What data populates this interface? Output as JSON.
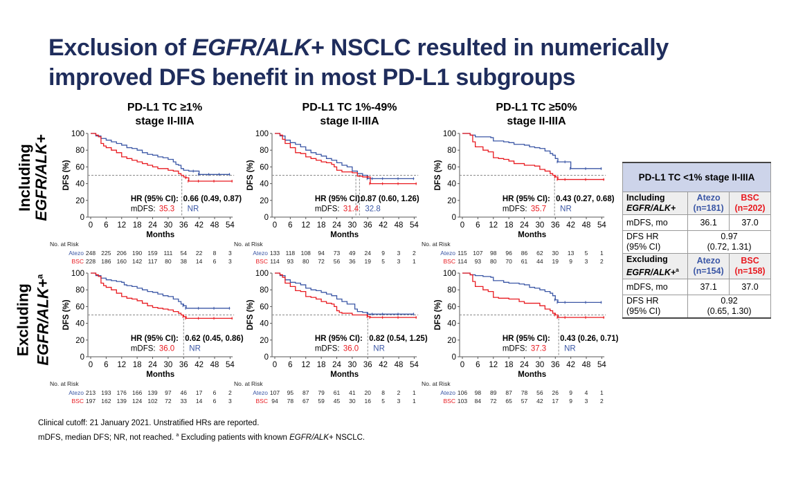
{
  "slide": {
    "title_parts": [
      "Exclusion of ",
      "EGFR/ALK",
      "+ NSCLC resulted in numerically",
      "improved DFS benefit in most PD-L1 subgroups"
    ],
    "row_labels": [
      {
        "line1": "Including",
        "line2": "EGFR/ALK+"
      },
      {
        "line1": "Excluding",
        "line2": "EGFR/ALK+",
        "sup": "a"
      }
    ],
    "footer_line1": "Clinical cutoff: 21 January 2021. Unstratified HRs are reported.",
    "footer_line2_a": "mDFS, median DFS; NR, not reached. ",
    "footer_line2_sup": "a",
    "footer_line2_b": " Excluding patients with known ",
    "footer_line2_c": "EGFR/ALK",
    "footer_line2_d": "+ NSCLC.",
    "colors": {
      "atezo": "#3a56a5",
      "bsc": "#e8191f",
      "title": "#1f2d5c"
    }
  },
  "side_table": {
    "title": "PD-L1 TC <1% stage II-IIIA",
    "groups": [
      {
        "label1": "Including",
        "label2": "EGFR/ALK+",
        "sup": "",
        "atezo": "Atezo",
        "atezo_n": "(n=181)",
        "bsc": "BSC",
        "bsc_n": "(n=202)",
        "mdfs_label": "mDFS, mo",
        "mdfs_atezo": "36.1",
        "mdfs_bsc": "37.0",
        "hr_label1": "DFS HR",
        "hr_label2": "(95% CI)",
        "hr": "0.97",
        "ci": "(0.72, 1.31)"
      },
      {
        "label1": "Excluding",
        "label2": "EGFR/ALK+",
        "sup": "a",
        "atezo": "Atezo",
        "atezo_n": "(n=154)",
        "bsc": "BSC",
        "bsc_n": "(n=158)",
        "mdfs_label": "mDFS, mo",
        "mdfs_atezo": "37.1",
        "mdfs_bsc": "37.0",
        "hr_label1": "DFS HR",
        "hr_label2": "(95% CI)",
        "hr": "0.92",
        "ci": "(0.65, 1.30)"
      }
    ]
  },
  "chart_data": [
    {
      "type": "line",
      "panel": "including-tc1",
      "title": [
        "PD-L1 TC ≥1%",
        "stage II-IIIA"
      ],
      "xlabel": "Months",
      "ylabel": "DFS (%)",
      "xticks": [
        0,
        6,
        12,
        18,
        24,
        30,
        36,
        42,
        48,
        54
      ],
      "yticks": [
        0,
        20,
        40,
        60,
        80,
        100
      ],
      "xlim": [
        0,
        55
      ],
      "ylim": [
        0,
        100
      ],
      "hr_label": "HR (95% CI):",
      "hr": "0.66 (0.49, 0.87)",
      "mdfs_label": "mDFS:",
      "mdfs_bsc": "35.3",
      "mdfs_atezo": "NR",
      "median_lines": [
        35.3
      ],
      "risk_label": "No. at Risk",
      "risk_atezo": [
        "248",
        "225",
        "206",
        "190",
        "159",
        "111",
        "54",
        "22",
        "8",
        "3"
      ],
      "risk_bsc": [
        "228",
        "186",
        "160",
        "142",
        "117",
        "80",
        "38",
        "14",
        "6",
        "3"
      ],
      "series": [
        {
          "name": "Atezo",
          "x": [
            0,
            2,
            4,
            6,
            8,
            10,
            12,
            14,
            16,
            18,
            20,
            22,
            24,
            26,
            28,
            30,
            32,
            33,
            34,
            35,
            36,
            38,
            40,
            42,
            46,
            50,
            54
          ],
          "y": [
            100,
            97,
            94,
            92,
            90,
            88,
            86,
            83,
            82,
            80,
            77,
            75,
            74,
            72,
            71,
            69,
            66,
            63,
            62,
            58,
            56,
            55,
            55,
            51,
            51,
            51,
            51
          ]
        },
        {
          "name": "BSC",
          "x": [
            0,
            2,
            3,
            4,
            5,
            6,
            8,
            10,
            12,
            14,
            16,
            18,
            20,
            22,
            24,
            26,
            28,
            30,
            32,
            34,
            35,
            36,
            37,
            38,
            42,
            48,
            55
          ],
          "y": [
            100,
            98,
            96,
            88,
            85,
            83,
            80,
            77,
            72,
            70,
            68,
            66,
            64,
            62,
            60,
            58,
            58,
            56,
            55,
            52,
            50,
            48,
            47,
            43,
            43,
            43,
            43
          ]
        }
      ]
    },
    {
      "type": "line",
      "panel": "including-tc1-49",
      "title": [
        "PD-L1 TC 1%-49%",
        "stage II-IIIA"
      ],
      "xlabel": "Months",
      "ylabel": "DFS (%)",
      "xticks": [
        0,
        6,
        12,
        18,
        24,
        30,
        36,
        42,
        48,
        54
      ],
      "yticks": [
        0,
        20,
        40,
        60,
        80,
        100
      ],
      "xlim": [
        0,
        55
      ],
      "ylim": [
        0,
        100
      ],
      "hr_label": "HR (95% CI):",
      "hr": "0.87 (0.60, 1.26)",
      "mdfs_label": "mDFS:",
      "mdfs_bsc": "31.4",
      "mdfs_atezo": "32.8",
      "median_lines": [
        31.4,
        32.8
      ],
      "risk_label": "No. at Risk",
      "risk_atezo": [
        "133",
        "118",
        "108",
        "94",
        "73",
        "49",
        "24",
        "9",
        "3",
        "2"
      ],
      "risk_bsc": [
        "114",
        "93",
        "80",
        "72",
        "56",
        "36",
        "19",
        "5",
        "3",
        "1"
      ],
      "series": [
        {
          "name": "Atezo",
          "x": [
            0,
            2,
            4,
            6,
            8,
            10,
            12,
            14,
            16,
            18,
            20,
            22,
            24,
            26,
            28,
            30,
            32,
            34,
            36,
            38,
            42,
            48,
            54
          ],
          "y": [
            100,
            97,
            92,
            89,
            87,
            84,
            80,
            77,
            75,
            73,
            70,
            68,
            65,
            62,
            60,
            55,
            52,
            50,
            46,
            46,
            46,
            46,
            46
          ]
        },
        {
          "name": "BSC",
          "x": [
            0,
            2,
            3,
            4,
            6,
            8,
            10,
            12,
            14,
            16,
            18,
            20,
            22,
            23,
            24,
            26,
            28,
            30,
            32,
            34,
            36,
            37,
            42,
            48,
            55
          ],
          "y": [
            100,
            98,
            93,
            88,
            83,
            77,
            76,
            72,
            70,
            68,
            66,
            65,
            63,
            60,
            56,
            54,
            54,
            53,
            49,
            48,
            48,
            40,
            40,
            40,
            40
          ]
        }
      ]
    },
    {
      "type": "line",
      "panel": "including-tc50",
      "title": [
        "PD-L1 TC ≥50%",
        "stage II-IIIA"
      ],
      "xlabel": "Months",
      "ylabel": "DFS (%)",
      "xticks": [
        0,
        6,
        12,
        18,
        24,
        30,
        36,
        42,
        48,
        54
      ],
      "yticks": [
        0,
        20,
        40,
        60,
        80,
        100
      ],
      "xlim": [
        0,
        55
      ],
      "ylim": [
        0,
        100
      ],
      "hr_label": "HR (95% CI):",
      "hr": "0.43 (0.27, 0.68)",
      "mdfs_label": "mDFS:",
      "mdfs_bsc": "35.7",
      "mdfs_atezo": "NR",
      "median_lines": [
        35.7
      ],
      "risk_label": "No. at Risk",
      "risk_atezo": [
        "115",
        "107",
        "98",
        "96",
        "86",
        "62",
        "30",
        "13",
        "5",
        "1"
      ],
      "risk_bsc": [
        "114",
        "93",
        "80",
        "70",
        "61",
        "44",
        "19",
        "9",
        "3",
        "2"
      ],
      "series": [
        {
          "name": "Atezo",
          "x": [
            0,
            3,
            5,
            8,
            11,
            12,
            16,
            18,
            20,
            24,
            26,
            28,
            30,
            32,
            34,
            35,
            36,
            37,
            40,
            42,
            48,
            54
          ],
          "y": [
            100,
            98,
            96,
            96,
            95,
            91,
            90,
            89,
            87,
            86,
            84,
            83,
            82,
            79,
            76,
            74,
            70,
            66,
            66,
            58,
            58,
            58
          ]
        },
        {
          "name": "BSC",
          "x": [
            0,
            3,
            4,
            5,
            6,
            8,
            10,
            12,
            14,
            16,
            18,
            20,
            24,
            28,
            30,
            32,
            34,
            35,
            36,
            37,
            40,
            48,
            55
          ],
          "y": [
            100,
            98,
            90,
            84,
            84,
            80,
            78,
            71,
            70,
            69,
            67,
            64,
            62,
            61,
            57,
            55,
            52,
            50,
            48,
            45,
            45,
            45,
            45
          ]
        }
      ]
    },
    {
      "type": "line",
      "panel": "excluding-tc1",
      "title": [],
      "xlabel": "Months",
      "ylabel": "DFS (%)",
      "xticks": [
        0,
        6,
        12,
        18,
        24,
        30,
        36,
        42,
        48,
        54
      ],
      "yticks": [
        0,
        20,
        40,
        60,
        80,
        100
      ],
      "xlim": [
        0,
        55
      ],
      "ylim": [
        0,
        100
      ],
      "hr_label": "HR (95% CI):",
      "hr": "0.62 (0.45, 0.86)",
      "mdfs_label": "mDFS:",
      "mdfs_bsc": "36.0",
      "mdfs_atezo": "NR",
      "median_lines": [
        36.0
      ],
      "risk_label": "No. at Risk",
      "risk_atezo": [
        "213",
        "193",
        "176",
        "166",
        "139",
        "97",
        "46",
        "17",
        "6",
        "2"
      ],
      "risk_bsc": [
        "197",
        "162",
        "139",
        "124",
        "102",
        "72",
        "33",
        "14",
        "6",
        "3"
      ],
      "series": [
        {
          "name": "Atezo",
          "x": [
            0,
            2,
            4,
            6,
            8,
            10,
            12,
            13,
            14,
            16,
            18,
            20,
            22,
            24,
            26,
            28,
            30,
            32,
            34,
            35,
            36,
            37,
            42,
            48,
            54
          ],
          "y": [
            100,
            97,
            94,
            92,
            91,
            90,
            89,
            86,
            85,
            84,
            82,
            80,
            78,
            77,
            75,
            73,
            72,
            69,
            66,
            63,
            61,
            58,
            58,
            58,
            58
          ]
        },
        {
          "name": "BSC",
          "x": [
            0,
            2,
            3,
            4,
            5,
            6,
            8,
            10,
            12,
            14,
            16,
            18,
            20,
            22,
            24,
            26,
            28,
            30,
            32,
            34,
            35,
            36,
            37,
            42,
            48,
            55
          ],
          "y": [
            100,
            98,
            96,
            88,
            85,
            83,
            80,
            76,
            72,
            70,
            69,
            67,
            64,
            61,
            59,
            58,
            57,
            56,
            54,
            52,
            50,
            48,
            46,
            46,
            46,
            46
          ]
        }
      ]
    },
    {
      "type": "line",
      "panel": "excluding-tc1-49",
      "title": [],
      "xlabel": "Months",
      "ylabel": "DFS (%)",
      "xticks": [
        0,
        6,
        12,
        18,
        24,
        30,
        36,
        42,
        48,
        54
      ],
      "yticks": [
        0,
        20,
        40,
        60,
        80,
        100
      ],
      "xlim": [
        0,
        55
      ],
      "ylim": [
        0,
        100
      ],
      "hr_label": "HR (95% CI):",
      "hr": "0.82 (0.54, 1.25)",
      "mdfs_label": "mDFS:",
      "mdfs_bsc": "36.0",
      "mdfs_atezo": "NR",
      "median_lines": [
        36.0
      ],
      "risk_label": "No. at Risk",
      "risk_atezo": [
        "107",
        "95",
        "87",
        "79",
        "61",
        "41",
        "20",
        "8",
        "2",
        "1"
      ],
      "risk_bsc": [
        "94",
        "78",
        "67",
        "59",
        "45",
        "30",
        "16",
        "5",
        "3",
        "1"
      ],
      "series": [
        {
          "name": "Atezo",
          "x": [
            0,
            2,
            4,
            6,
            8,
            10,
            12,
            14,
            16,
            18,
            20,
            22,
            24,
            26,
            28,
            30,
            31,
            32,
            34,
            36,
            38,
            42,
            48,
            54
          ],
          "y": [
            100,
            97,
            92,
            89,
            88,
            86,
            82,
            80,
            79,
            77,
            75,
            73,
            69,
            66,
            63,
            63,
            57,
            54,
            53,
            51,
            51,
            51,
            51,
            51
          ]
        },
        {
          "name": "BSC",
          "x": [
            0,
            2,
            3,
            4,
            6,
            8,
            10,
            12,
            14,
            16,
            18,
            20,
            22,
            23,
            24,
            25,
            26,
            28,
            30,
            32,
            34,
            36,
            37,
            42,
            48,
            55
          ],
          "y": [
            100,
            98,
            95,
            88,
            84,
            79,
            78,
            72,
            71,
            69,
            66,
            64,
            63,
            60,
            55,
            53,
            52,
            52,
            50,
            50,
            50,
            48,
            47,
            47,
            47,
            47
          ]
        }
      ]
    },
    {
      "type": "line",
      "panel": "excluding-tc50",
      "title": [],
      "xlabel": "Months",
      "ylabel": "DFS (%)",
      "xticks": [
        0,
        6,
        12,
        18,
        24,
        30,
        36,
        42,
        48,
        54
      ],
      "yticks": [
        0,
        20,
        40,
        60,
        80,
        100
      ],
      "xlim": [
        0,
        55
      ],
      "ylim": [
        0,
        100
      ],
      "hr_label": "HR (95% CI):",
      "hr": "0.43 (0.26, 0.71)",
      "mdfs_label": "mDFS:",
      "mdfs_bsc": "37.3",
      "mdfs_atezo": "NR",
      "median_lines": [
        37.3
      ],
      "risk_label": "No. at Risk",
      "risk_atezo": [
        "106",
        "98",
        "89",
        "87",
        "78",
        "56",
        "26",
        "9",
        "4",
        "1"
      ],
      "risk_bsc": [
        "103",
        "84",
        "72",
        "65",
        "57",
        "42",
        "17",
        "9",
        "3",
        "2"
      ],
      "series": [
        {
          "name": "Atezo",
          "x": [
            0,
            3,
            5,
            8,
            11,
            12,
            16,
            18,
            22,
            24,
            26,
            28,
            30,
            32,
            34,
            35,
            36,
            37,
            40,
            48,
            54
          ],
          "y": [
            100,
            98,
            97,
            96,
            95,
            91,
            89,
            88,
            87,
            86,
            83,
            82,
            80,
            78,
            76,
            73,
            68,
            65,
            65,
            65,
            65
          ]
        },
        {
          "name": "BSC",
          "x": [
            0,
            3,
            4,
            5,
            6,
            8,
            10,
            12,
            14,
            18,
            22,
            24,
            28,
            30,
            32,
            34,
            35,
            36,
            37,
            40,
            48,
            55
          ],
          "y": [
            100,
            98,
            90,
            84,
            84,
            80,
            78,
            71,
            70,
            69,
            66,
            64,
            64,
            61,
            57,
            55,
            52,
            50,
            47,
            47,
            47,
            47
          ]
        }
      ]
    }
  ]
}
